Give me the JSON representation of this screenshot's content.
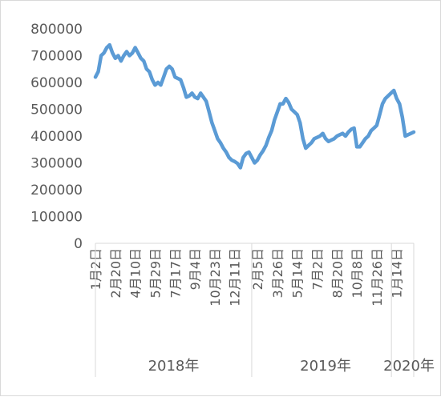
{
  "chart_data": {
    "type": "line",
    "title": "",
    "xlabel": "",
    "ylabel": "",
    "ylim": [
      0,
      800000
    ],
    "yticks": [
      "800000",
      "700000",
      "600000",
      "500000",
      "400000",
      "300000",
      "200000",
      "100000",
      "0"
    ],
    "x_tick_labels": [
      "1月2日",
      "2月20日",
      "4月10日",
      "5月29日",
      "7月17日",
      "9月4日",
      "10月23日",
      "12月11日",
      "2月5日",
      "3月26日",
      "5月14日",
      "7月2日",
      "8月20日",
      "10月8日",
      "11月26日",
      "1月14日"
    ],
    "year_groups": [
      {
        "label": "2018年"
      },
      {
        "label": "2019年"
      },
      {
        "label": "2020年"
      }
    ],
    "grid": false,
    "legend": "none",
    "line_color": "#5b9bd5",
    "series": [
      {
        "x": [
          "2018-01-02",
          "2018-01-09",
          "2018-01-16",
          "2018-01-23",
          "2018-01-30",
          "2018-02-06",
          "2018-02-13",
          "2018-02-20",
          "2018-02-27",
          "2018-03-06",
          "2018-03-13",
          "2018-03-20",
          "2018-03-27",
          "2018-04-03",
          "2018-04-10",
          "2018-04-17",
          "2018-04-24",
          "2018-05-01",
          "2018-05-08",
          "2018-05-15",
          "2018-05-22",
          "2018-05-29",
          "2018-06-05",
          "2018-06-12",
          "2018-06-19",
          "2018-06-26",
          "2018-07-03",
          "2018-07-10",
          "2018-07-17",
          "2018-07-24",
          "2018-07-31",
          "2018-08-07",
          "2018-08-14",
          "2018-08-21",
          "2018-08-28",
          "2018-09-04",
          "2018-09-11",
          "2018-09-18",
          "2018-09-25",
          "2018-10-02",
          "2018-10-09",
          "2018-10-16",
          "2018-10-23",
          "2018-10-30",
          "2018-11-06",
          "2018-11-13",
          "2018-11-20",
          "2018-11-27",
          "2018-12-04",
          "2018-12-11",
          "2018-12-18",
          "2018-12-25",
          "2019-01-01",
          "2019-01-08",
          "2019-01-15",
          "2019-01-22",
          "2019-01-29",
          "2019-02-05",
          "2019-02-12",
          "2019-02-19",
          "2019-02-26",
          "2019-03-05",
          "2019-03-12",
          "2019-03-19",
          "2019-03-26",
          "2019-04-02",
          "2019-04-09",
          "2019-04-16",
          "2019-04-23",
          "2019-04-30",
          "2019-05-07",
          "2019-05-14",
          "2019-05-21",
          "2019-05-28",
          "2019-06-04",
          "2019-06-11",
          "2019-06-18",
          "2019-06-25",
          "2019-07-02",
          "2019-07-09",
          "2019-07-16",
          "2019-07-23",
          "2019-07-30",
          "2019-08-06",
          "2019-08-13",
          "2019-08-20",
          "2019-08-27",
          "2019-09-03",
          "2019-09-10",
          "2019-09-17",
          "2019-09-24",
          "2019-10-01",
          "2019-10-08",
          "2019-10-15",
          "2019-10-22",
          "2019-10-29",
          "2019-11-05",
          "2019-11-12",
          "2019-11-19",
          "2019-11-26",
          "2019-12-03",
          "2019-12-10",
          "2019-12-17",
          "2019-12-24",
          "2019-12-31",
          "2020-01-07",
          "2020-01-14",
          "2020-01-21",
          "2020-01-28",
          "2020-02-04",
          "2020-02-11",
          "2020-02-18",
          "2020-02-25"
        ],
        "values": [
          620000,
          640000,
          700000,
          710000,
          730000,
          740000,
          710000,
          690000,
          700000,
          680000,
          700000,
          715000,
          700000,
          710000,
          730000,
          710000,
          690000,
          680000,
          650000,
          640000,
          610000,
          590000,
          600000,
          590000,
          620000,
          650000,
          660000,
          650000,
          620000,
          615000,
          610000,
          580000,
          545000,
          550000,
          560000,
          545000,
          540000,
          560000,
          545000,
          530000,
          490000,
          450000,
          420000,
          390000,
          375000,
          355000,
          340000,
          320000,
          310000,
          305000,
          298000,
          282000,
          320000,
          335000,
          340000,
          320000,
          300000,
          310000,
          330000,
          345000,
          365000,
          395000,
          420000,
          460000,
          490000,
          520000,
          520000,
          540000,
          525000,
          500000,
          490000,
          480000,
          450000,
          390000,
          355000,
          365000,
          375000,
          390000,
          395000,
          400000,
          410000,
          390000,
          380000,
          385000,
          390000,
          400000,
          405000,
          410000,
          400000,
          415000,
          425000,
          430000,
          360000,
          360000,
          375000,
          390000,
          400000,
          420000,
          430000,
          440000,
          480000,
          520000,
          540000,
          550000,
          560000,
          570000,
          540000,
          520000,
          470000,
          400000,
          405000,
          410000,
          415000
        ]
      }
    ]
  }
}
